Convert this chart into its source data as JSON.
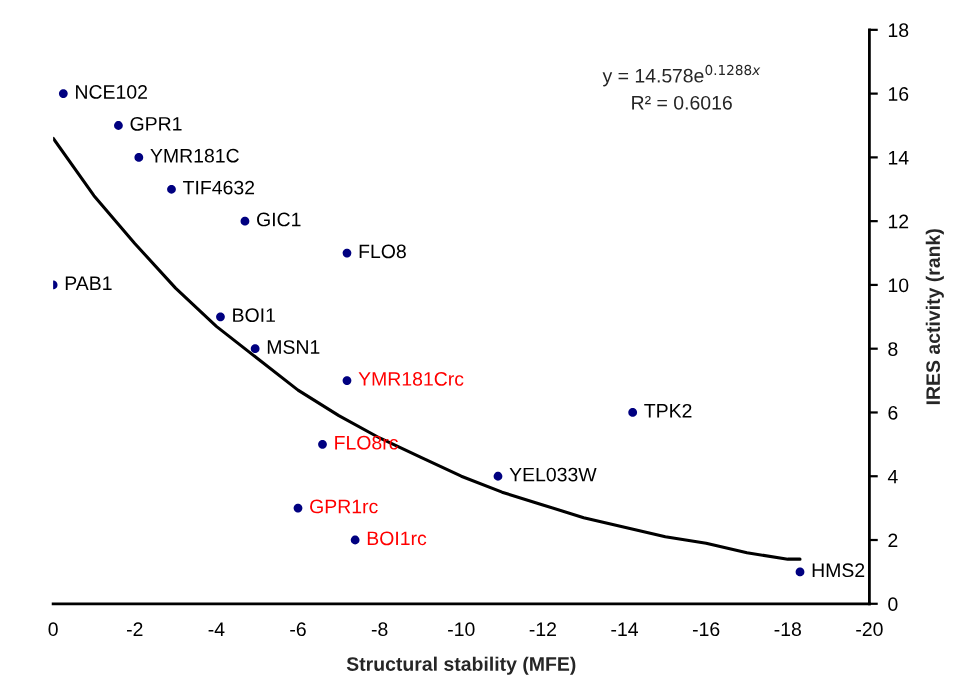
{
  "chart_data": {
    "type": "scatter",
    "xlabel": "Structural stability (MFE)",
    "ylabel": "IRES activity (rank)",
    "xlim": [
      0,
      -20
    ],
    "xticks": [
      0,
      -2,
      -4,
      -6,
      -8,
      -10,
      -12,
      -14,
      -16,
      -18,
      -20
    ],
    "ylim": [
      0,
      18
    ],
    "yticks": [
      0,
      2,
      4,
      6,
      8,
      10,
      12,
      14,
      16,
      18
    ],
    "grid": false,
    "legend": false,
    "marker": "circle",
    "series": [
      {
        "color": "#000080",
        "x": [
          -0.25,
          -1.6,
          -2.1,
          -2.9,
          -4.7,
          -7.2,
          0,
          -4.1,
          -4.95,
          -10.9,
          -14.2,
          -18.3
        ],
        "values": [
          16,
          15,
          14,
          13,
          12,
          11,
          10,
          9,
          8,
          4,
          6,
          1
        ],
        "value_labels": [
          "NCE102",
          "GPR1",
          "YMR181C",
          "TIF4632",
          "GIC1",
          "FLO8",
          "PAB1",
          "BOI1",
          "MSN1",
          "YEL033W",
          "TPK2",
          "HMS2"
        ]
      },
      {
        "color": "#000080",
        "x": [
          -7.2,
          -6.6,
          -6.0,
          -7.4
        ],
        "values": [
          7,
          5,
          3,
          2
        ],
        "value_labels": [
          "YMR181Crc",
          "FLO8rc",
          "GPR1rc",
          "BOI1rc"
        ]
      },
      {
        "type": "line",
        "color": "#000000",
        "marker": "none",
        "x": [
          0,
          -1,
          -2,
          -3,
          -4,
          -5,
          -6,
          -7,
          -8,
          -9,
          -10,
          -11,
          -12,
          -13,
          -14,
          -15,
          -16,
          -17,
          -18,
          -18.3
        ],
        "values": [
          14.6,
          12.8,
          11.3,
          9.9,
          8.7,
          7.7,
          6.7,
          5.9,
          5.2,
          4.6,
          4.0,
          3.5,
          3.1,
          2.7,
          2.4,
          2.1,
          1.9,
          1.6,
          1.4,
          1.4
        ]
      }
    ],
    "annotations": [
      "y = 14.578e$^{0.1288x}$",
      "R² = 0.6016"
    ]
  }
}
